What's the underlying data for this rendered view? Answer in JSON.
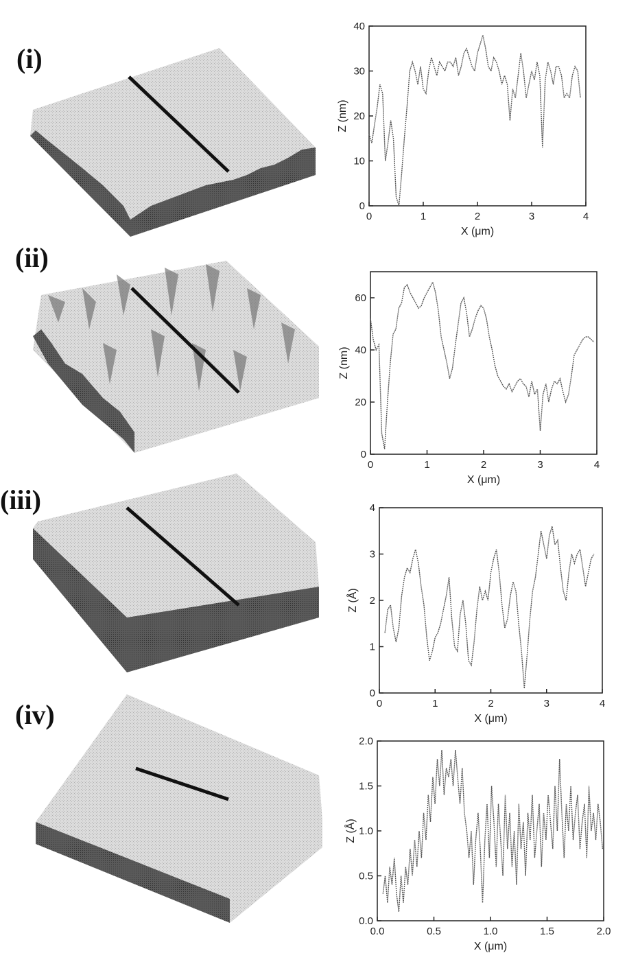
{
  "panels": [
    {
      "label": "(i)"
    },
    {
      "label": "(ii)"
    },
    {
      "label": "(iii)"
    },
    {
      "label": "(iv)"
    }
  ],
  "colors": {
    "line": "#555555",
    "axis": "#222222",
    "surface_top": "#d8d8d8",
    "surface_side": "#555555",
    "scan_line": "#111111"
  },
  "chart_data": [
    {
      "type": "line",
      "xlabel": "X (μm)",
      "ylabel": "Z (nm)",
      "xlim": [
        0,
        4
      ],
      "ylim": [
        0,
        40
      ],
      "xticks": [
        "0",
        "1",
        "2",
        "3",
        "4"
      ],
      "yticks": [
        "0",
        "10",
        "20",
        "30",
        "40"
      ],
      "x": [
        0,
        0.05,
        0.1,
        0.15,
        0.2,
        0.25,
        0.3,
        0.35,
        0.4,
        0.45,
        0.5,
        0.55,
        0.6,
        0.65,
        0.7,
        0.75,
        0.8,
        0.85,
        0.9,
        0.95,
        1.0,
        1.05,
        1.1,
        1.15,
        1.2,
        1.25,
        1.3,
        1.35,
        1.4,
        1.45,
        1.5,
        1.55,
        1.6,
        1.65,
        1.7,
        1.75,
        1.8,
        1.85,
        1.9,
        1.95,
        2.0,
        2.05,
        2.1,
        2.15,
        2.2,
        2.25,
        2.3,
        2.35,
        2.4,
        2.45,
        2.5,
        2.55,
        2.6,
        2.65,
        2.7,
        2.75,
        2.8,
        2.85,
        2.9,
        2.95,
        3.0,
        3.05,
        3.1,
        3.15,
        3.2,
        3.25,
        3.3,
        3.35,
        3.4,
        3.45,
        3.5,
        3.55,
        3.6,
        3.65,
        3.7,
        3.75,
        3.8,
        3.85,
        3.9
      ],
      "y": [
        16,
        14,
        18,
        22,
        27,
        25,
        10,
        14,
        19,
        15,
        2,
        0,
        7,
        15,
        22,
        30,
        32,
        30,
        27,
        31,
        26,
        25,
        30,
        33,
        31,
        29,
        32,
        31,
        30,
        32,
        32,
        31,
        33,
        29,
        31,
        34,
        35,
        33,
        31,
        30,
        34,
        36,
        38,
        35,
        31,
        30,
        33,
        32,
        30,
        27,
        29,
        27,
        19,
        26,
        24,
        29,
        34,
        30,
        24,
        27,
        30,
        28,
        32,
        29,
        13,
        28,
        32,
        30,
        27,
        31,
        31,
        29,
        24,
        25,
        24,
        29,
        31,
        30,
        24
      ],
      "series_style": "line"
    },
    {
      "type": "line",
      "xlabel": "X (μm)",
      "ylabel": "Z (nm)",
      "xlim": [
        0,
        4
      ],
      "ylim": [
        0,
        70
      ],
      "xticks": [
        "0",
        "1",
        "2",
        "3",
        "4"
      ],
      "yticks": [
        "0",
        "20",
        "40",
        "60"
      ],
      "x": [
        0,
        0.05,
        0.1,
        0.15,
        0.2,
        0.25,
        0.3,
        0.35,
        0.4,
        0.45,
        0.5,
        0.55,
        0.6,
        0.65,
        0.7,
        0.75,
        0.8,
        0.85,
        0.9,
        0.95,
        1.0,
        1.05,
        1.1,
        1.15,
        1.2,
        1.25,
        1.3,
        1.35,
        1.4,
        1.45,
        1.5,
        1.55,
        1.6,
        1.65,
        1.7,
        1.75,
        1.8,
        1.85,
        1.9,
        1.95,
        2.0,
        2.05,
        2.1,
        2.15,
        2.2,
        2.25,
        2.3,
        2.35,
        2.4,
        2.45,
        2.5,
        2.55,
        2.6,
        2.65,
        2.7,
        2.75,
        2.8,
        2.85,
        2.9,
        2.95,
        3.0,
        3.05,
        3.1,
        3.15,
        3.2,
        3.25,
        3.3,
        3.35,
        3.4,
        3.45,
        3.5,
        3.55,
        3.6,
        3.65,
        3.7,
        3.75,
        3.8,
        3.85,
        3.9,
        3.95
      ],
      "y": [
        52,
        44,
        40,
        42,
        8,
        2,
        20,
        35,
        46,
        48,
        56,
        58,
        64,
        65,
        62,
        60,
        58,
        56,
        57,
        60,
        62,
        64,
        66,
        62,
        55,
        45,
        40,
        35,
        29,
        33,
        42,
        50,
        58,
        60,
        54,
        45,
        48,
        52,
        55,
        57,
        56,
        52,
        45,
        40,
        34,
        30,
        28,
        26,
        25,
        27,
        24,
        26,
        28,
        29,
        27,
        26,
        22,
        28,
        23,
        25,
        9,
        23,
        27,
        20,
        25,
        28,
        27,
        29,
        24,
        20,
        23,
        30,
        38,
        40,
        42,
        44,
        45,
        45,
        44,
        43
      ],
      "series_style": "line"
    },
    {
      "type": "line",
      "xlabel": "X (μm)",
      "ylabel": "Z (Å)",
      "xlim": [
        0,
        4
      ],
      "ylim": [
        0,
        4
      ],
      "xticks": [
        "0",
        "1",
        "2",
        "3",
        "4"
      ],
      "yticks": [
        "0",
        "1",
        "2",
        "3",
        "4"
      ],
      "x": [
        0.1,
        0.15,
        0.2,
        0.25,
        0.3,
        0.35,
        0.4,
        0.45,
        0.5,
        0.55,
        0.6,
        0.65,
        0.7,
        0.75,
        0.8,
        0.85,
        0.9,
        0.95,
        1.0,
        1.05,
        1.1,
        1.15,
        1.2,
        1.25,
        1.3,
        1.35,
        1.4,
        1.45,
        1.5,
        1.55,
        1.6,
        1.65,
        1.7,
        1.75,
        1.8,
        1.85,
        1.9,
        1.95,
        2.0,
        2.05,
        2.1,
        2.15,
        2.2,
        2.25,
        2.3,
        2.35,
        2.4,
        2.45,
        2.5,
        2.55,
        2.6,
        2.65,
        2.7,
        2.75,
        2.8,
        2.85,
        2.9,
        2.95,
        3.0,
        3.05,
        3.1,
        3.15,
        3.2,
        3.25,
        3.3,
        3.35,
        3.4,
        3.45,
        3.5,
        3.55,
        3.6,
        3.65,
        3.7,
        3.75,
        3.8,
        3.85
      ],
      "y": [
        1.3,
        1.8,
        1.9,
        1.4,
        1.1,
        1.4,
        2.1,
        2.5,
        2.7,
        2.6,
        2.9,
        3.1,
        2.8,
        2.3,
        1.9,
        1.2,
        0.7,
        0.9,
        1.2,
        1.3,
        1.5,
        1.8,
        2.1,
        2.5,
        1.6,
        1.0,
        0.9,
        1.7,
        2.0,
        1.5,
        0.7,
        0.6,
        1.1,
        1.8,
        2.3,
        2.0,
        2.2,
        2.0,
        2.6,
        2.9,
        3.1,
        2.6,
        1.9,
        1.4,
        1.6,
        2.1,
        2.4,
        2.2,
        1.5,
        0.9,
        0.1,
        0.8,
        1.6,
        2.2,
        2.5,
        3.0,
        3.5,
        3.2,
        2.9,
        3.4,
        3.6,
        3.2,
        3.3,
        2.7,
        2.2,
        2.0,
        2.6,
        3.0,
        2.8,
        3.0,
        3.1,
        2.7,
        2.3,
        2.6,
        2.9,
        3.0
      ],
      "series_style": "line"
    },
    {
      "type": "line",
      "xlabel": "X (μm)",
      "ylabel": "Z (Å)",
      "xlim": [
        0,
        2
      ],
      "ylim": [
        0,
        2
      ],
      "xticks": [
        "0.0",
        "0.5",
        "1.0",
        "1.5",
        "2.0"
      ],
      "yticks": [
        "0.0",
        "0.5",
        "1.0",
        "1.5",
        "2.0"
      ],
      "x": [
        0.05,
        0.07,
        0.09,
        0.11,
        0.13,
        0.15,
        0.17,
        0.19,
        0.21,
        0.23,
        0.25,
        0.27,
        0.29,
        0.31,
        0.33,
        0.35,
        0.37,
        0.39,
        0.41,
        0.43,
        0.45,
        0.47,
        0.49,
        0.51,
        0.53,
        0.55,
        0.57,
        0.59,
        0.61,
        0.63,
        0.65,
        0.67,
        0.69,
        0.71,
        0.73,
        0.75,
        0.77,
        0.79,
        0.81,
        0.83,
        0.85,
        0.87,
        0.89,
        0.91,
        0.93,
        0.95,
        0.97,
        0.99,
        1.01,
        1.03,
        1.05,
        1.07,
        1.09,
        1.11,
        1.13,
        1.15,
        1.17,
        1.19,
        1.21,
        1.23,
        1.25,
        1.27,
        1.29,
        1.31,
        1.33,
        1.35,
        1.37,
        1.39,
        1.41,
        1.43,
        1.45,
        1.47,
        1.49,
        1.51,
        1.53,
        1.55,
        1.57,
        1.59,
        1.61,
        1.63,
        1.65,
        1.67,
        1.69,
        1.71,
        1.73,
        1.75,
        1.77,
        1.79,
        1.81,
        1.83,
        1.85,
        1.87,
        1.89,
        1.91,
        1.93,
        1.95,
        1.97,
        1.99
      ],
      "y": [
        0.3,
        0.5,
        0.2,
        0.6,
        0.4,
        0.7,
        0.3,
        0.1,
        0.5,
        0.2,
        0.6,
        0.4,
        0.8,
        0.5,
        0.9,
        0.6,
        1.0,
        0.7,
        1.2,
        0.9,
        1.4,
        1.1,
        1.6,
        1.3,
        1.8,
        1.5,
        1.9,
        1.4,
        1.7,
        1.6,
        1.8,
        1.5,
        1.9,
        1.6,
        1.3,
        1.7,
        1.2,
        1.0,
        0.7,
        1.0,
        0.4,
        0.9,
        1.2,
        0.8,
        0.2,
        0.9,
        1.3,
        0.7,
        1.5,
        1.1,
        0.6,
        1.3,
        0.9,
        0.5,
        1.4,
        0.8,
        1.2,
        0.6,
        1.0,
        0.4,
        1.3,
        0.8,
        1.1,
        0.5,
        1.2,
        0.9,
        1.4,
        0.7,
        1.0,
        1.3,
        0.6,
        1.2,
        0.9,
        1.4,
        1.1,
        0.8,
        1.5,
        1.0,
        1.8,
        1.2,
        0.7,
        1.3,
        1.0,
        1.5,
        0.9,
        1.2,
        1.4,
        0.8,
        1.1,
        1.3,
        0.7,
        1.5,
        1.0,
        1.2,
        0.9,
        1.3,
        1.1,
        0.8
      ],
      "series_style": "line"
    }
  ]
}
